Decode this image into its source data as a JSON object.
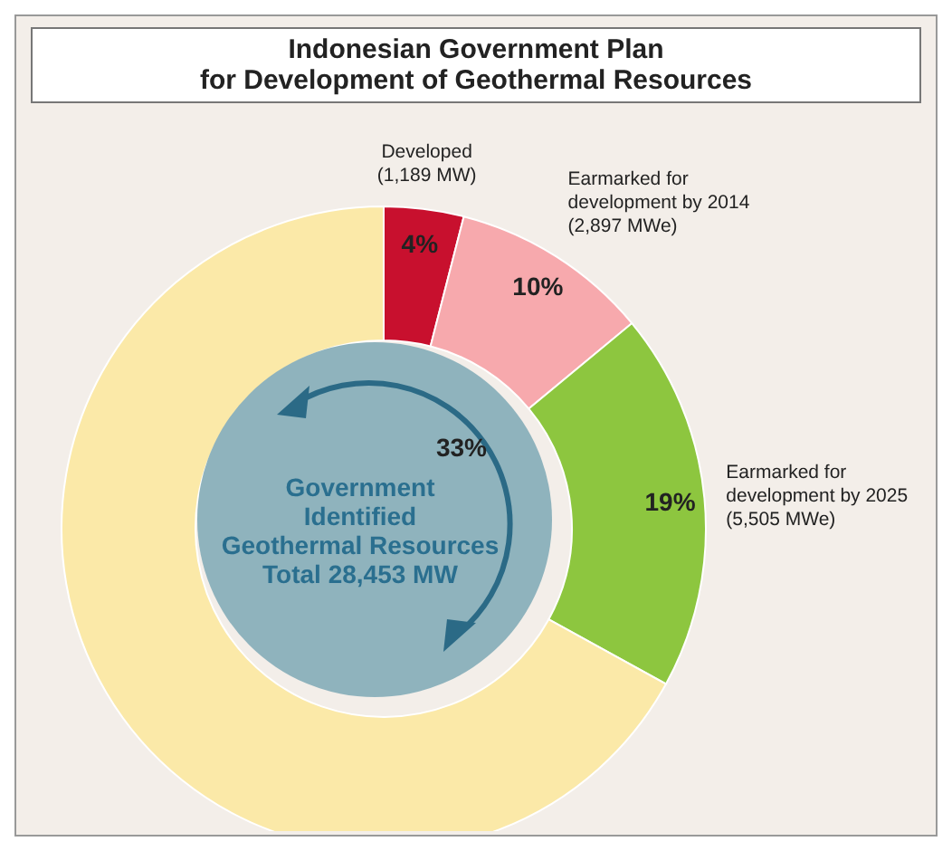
{
  "chart_data": {
    "type": "donut",
    "title": "Indonesian Government Plan\nfor Development of Geothermal Resources",
    "categories": [
      "Developed\n(1,189 MW)",
      "Earmarked for\ndevelopment by 2014\n(2,897 MWe)",
      "Earmarked for\ndevelopment by 2025\n(5,505 MWe)",
      null
    ],
    "values": [
      4,
      10,
      19,
      67
    ],
    "value_labels": [
      "4%",
      "10%",
      "19%",
      null
    ],
    "colors": [
      "#c8102e",
      "#f7a9ad",
      "#8dc63f",
      "#fbe9a8"
    ],
    "annotations": [
      "Government\nIdentified\nGeothermal Resources\nTotal 28,453 MW",
      "33%"
    ]
  }
}
